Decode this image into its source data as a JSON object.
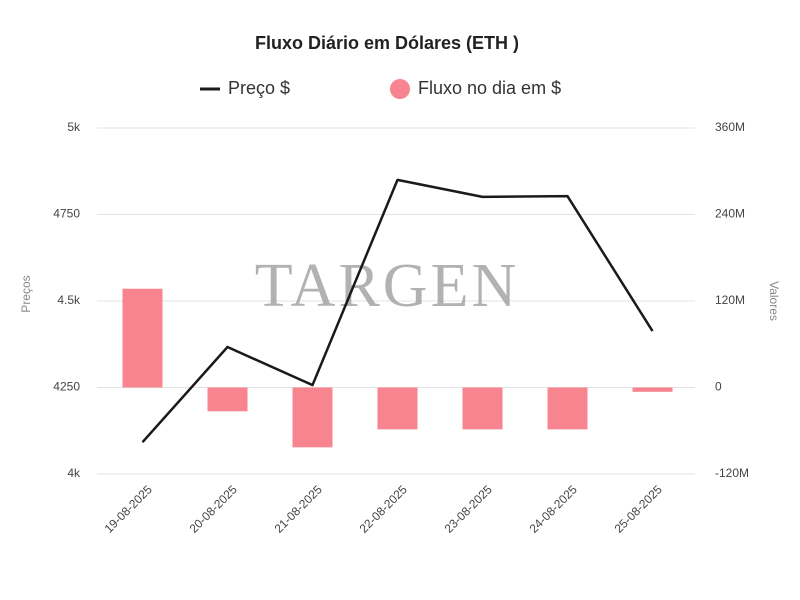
{
  "chart_data": {
    "type": "bar-line",
    "title": "Fluxo Diário em Dólares (ETH )",
    "watermark": "TARGEN",
    "y_label": "Preços",
    "y2_label": "Valores",
    "categories": [
      "19-08-2025",
      "20-08-2025",
      "21-08-2025",
      "22-08-2025",
      "23-08-2025",
      "24-08-2025",
      "25-08-2025"
    ],
    "series": [
      {
        "name": "Preço $",
        "type": "line",
        "color": "#1a1a1a",
        "axis": "y",
        "values": [
          4092,
          4367,
          4257,
          4850,
          4801,
          4803,
          4413
        ]
      },
      {
        "name": "Fluxo no dia em $",
        "type": "bar",
        "color": "#f7848e",
        "axis": "y2",
        "values": [
          137000000,
          -33000000,
          -83000000,
          -58000000,
          -58000000,
          -58000000,
          -6000000
        ]
      }
    ],
    "ylim": [
      4000,
      5000
    ],
    "yticks": [
      {
        "value": 4000,
        "label": "4k"
      },
      4250,
      {
        "value": 4500,
        "label": "4.5k"
      },
      4750,
      {
        "value": 5000,
        "label": "5k"
      }
    ],
    "y2lim": [
      -120000000,
      360000000
    ],
    "y2ticks": [
      {
        "value": -120000000,
        "label": "-120M"
      },
      0,
      {
        "value": 120000000,
        "label": "120M"
      },
      {
        "value": 240000000,
        "label": "240M"
      },
      {
        "value": 360000000,
        "label": "360M"
      }
    ],
    "grid": true
  }
}
